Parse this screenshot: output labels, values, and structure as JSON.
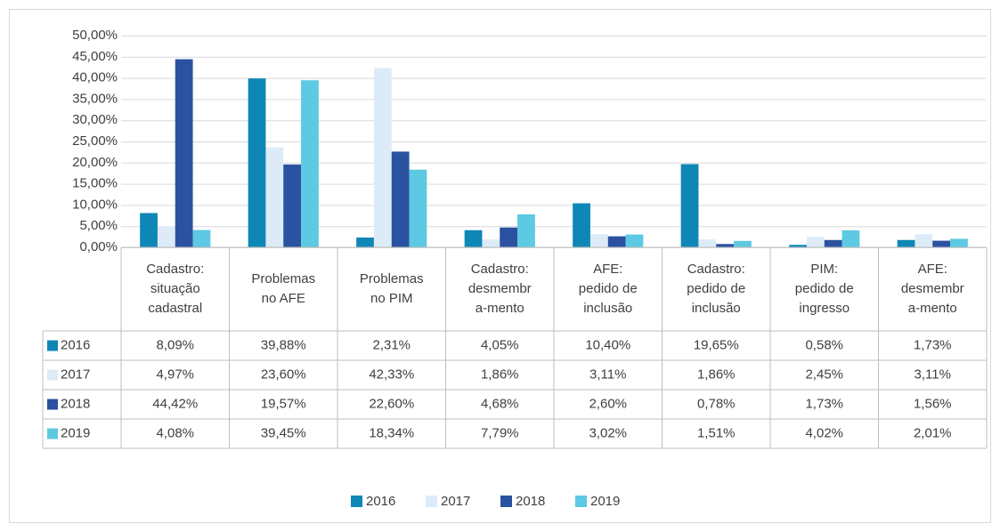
{
  "chart_data": {
    "type": "bar",
    "categories": [
      [
        "Cadastro:",
        "situação",
        "cadastral"
      ],
      [
        "Problemas",
        "no AFE"
      ],
      [
        "Problemas",
        "no PIM"
      ],
      [
        "Cadastro:",
        "desmembr",
        "a-mento"
      ],
      [
        "AFE:",
        "pedido de",
        "inclusão"
      ],
      [
        "Cadastro:",
        "pedido de",
        "inclusão"
      ],
      [
        "PIM:",
        "pedido de",
        "ingresso"
      ],
      [
        "AFE:",
        "desmembr",
        "a-mento"
      ]
    ],
    "series": [
      {
        "name": "2016",
        "color": "#0f87b6",
        "values": [
          8.09,
          39.88,
          2.31,
          4.05,
          10.4,
          19.65,
          0.58,
          1.73
        ],
        "value_labels": [
          "8,09%",
          "39,88%",
          "2,31%",
          "4,05%",
          "10,40%",
          "19,65%",
          "0,58%",
          "1,73%"
        ]
      },
      {
        "name": "2017",
        "color": "#ddebf8",
        "values": [
          4.97,
          23.6,
          42.33,
          1.86,
          3.11,
          1.86,
          2.45,
          3.11
        ],
        "value_labels": [
          "4,97%",
          "23,60%",
          "42,33%",
          "1,86%",
          "3,11%",
          "1,86%",
          "2,45%",
          "3,11%"
        ]
      },
      {
        "name": "2018",
        "color": "#2a52a0",
        "values": [
          44.42,
          19.57,
          22.6,
          4.68,
          2.6,
          0.78,
          1.73,
          1.56
        ],
        "value_labels": [
          "44,42%",
          "19,57%",
          "22,60%",
          "4,68%",
          "2,60%",
          "0,78%",
          "1,73%",
          "1,56%"
        ]
      },
      {
        "name": "2019",
        "color": "#5dc9e2",
        "values": [
          4.08,
          39.45,
          18.34,
          7.79,
          3.02,
          1.51,
          4.02,
          2.01
        ],
        "value_labels": [
          "4,08%",
          "39,45%",
          "18,34%",
          "7,79%",
          "3,02%",
          "1,51%",
          "4,02%",
          "2,01%"
        ]
      }
    ],
    "ylim": [
      0,
      50
    ],
    "yticks": [
      {
        "value": 0,
        "label": "0,00%"
      },
      {
        "value": 5,
        "label": "5,00%"
      },
      {
        "value": 10,
        "label": "10,00%"
      },
      {
        "value": 15,
        "label": "15,00%"
      },
      {
        "value": 20,
        "label": "20,00%"
      },
      {
        "value": 25,
        "label": "25,00%"
      },
      {
        "value": 30,
        "label": "30,00%"
      },
      {
        "value": 35,
        "label": "35,00%"
      },
      {
        "value": 40,
        "label": "40,00%"
      },
      {
        "value": 45,
        "label": "45,00%"
      },
      {
        "value": 50,
        "label": "50,00%"
      }
    ],
    "grid": true,
    "legend": "bottom",
    "data_table": true
  }
}
